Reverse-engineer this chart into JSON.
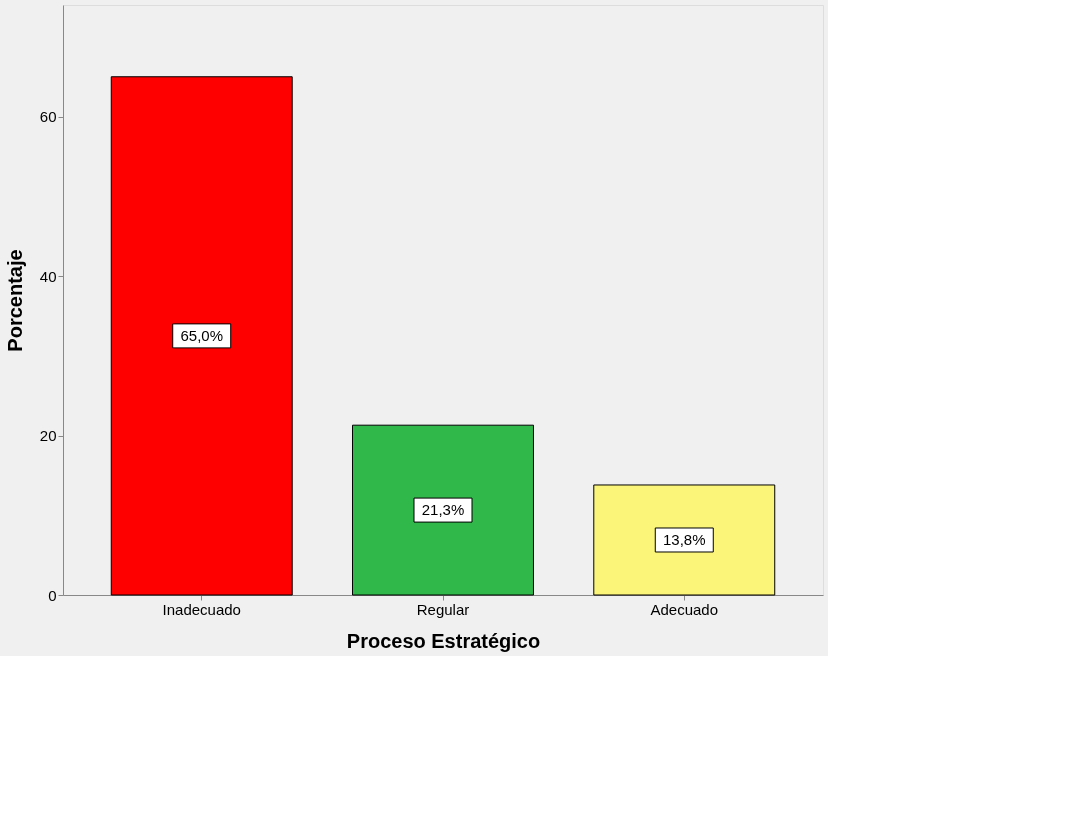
{
  "chart_data": {
    "type": "bar",
    "xlabel": "Proceso Estratégico",
    "ylabel": "Porcentaje",
    "categories": [
      "Inadecuado",
      "Regular",
      "Adecuado"
    ],
    "values": [
      65.0,
      21.3,
      13.8
    ],
    "colors": [
      "#ff0000",
      "#31b84a",
      "#fbf67a"
    ],
    "value_labels": [
      "65,0%",
      "21,3%",
      "13,8%"
    ],
    "ylim": [
      0,
      74
    ],
    "yticks": [
      0,
      20,
      40,
      60
    ],
    "grid": false,
    "legend": false
  }
}
